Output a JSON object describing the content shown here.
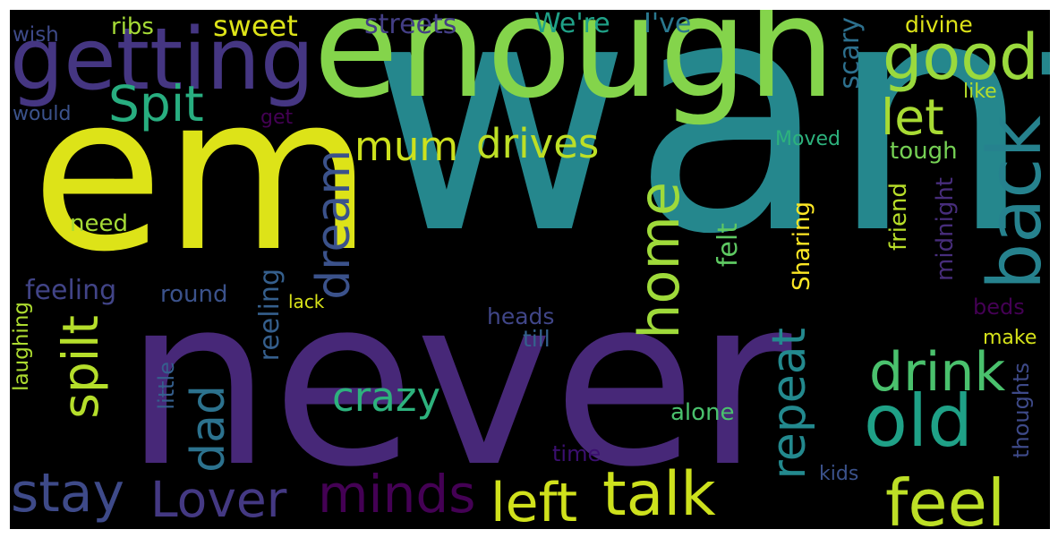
{
  "background_color": "#000000",
  "words": [
    {
      "text": "want",
      "color": "#25878d"
    },
    {
      "text": "never",
      "color": "#472878"
    },
    {
      "text": "em",
      "color": "#dde318"
    },
    {
      "text": "enough",
      "color": "#84d44b"
    },
    {
      "text": "getting",
      "color": "#453682"
    },
    {
      "text": "good",
      "color": "#9ad93d"
    },
    {
      "text": "back",
      "color": "#26828e"
    },
    {
      "text": "Spit",
      "color": "#28ae80"
    },
    {
      "text": "let",
      "color": "#a8db34"
    },
    {
      "text": "mum",
      "color": "#cde11d"
    },
    {
      "text": "drives",
      "color": "#bddf26"
    },
    {
      "text": "home",
      "color": "#9fda3a"
    },
    {
      "text": "dream",
      "color": "#3b528b"
    },
    {
      "text": "old",
      "color": "#1fa187"
    },
    {
      "text": "drink",
      "color": "#4ac16d"
    },
    {
      "text": "repeat",
      "color": "#23898e"
    },
    {
      "text": "talk",
      "color": "#cde11d"
    },
    {
      "text": "feel",
      "color": "#bddf26"
    },
    {
      "text": "left",
      "color": "#d0e11c"
    },
    {
      "text": "minds",
      "color": "#440154"
    },
    {
      "text": "Lover",
      "color": "#443983"
    },
    {
      "text": "stay",
      "color": "#3e4a89"
    },
    {
      "text": "spilt",
      "color": "#b5de2b"
    },
    {
      "text": "dad",
      "color": "#2c728e"
    },
    {
      "text": "crazy",
      "color": "#2db27d"
    },
    {
      "text": "feeling",
      "color": "#414487"
    },
    {
      "text": "sweet",
      "color": "#dde318"
    },
    {
      "text": "streets",
      "color": "#433e85"
    },
    {
      "text": "We're",
      "color": "#1fa187"
    },
    {
      "text": "I've",
      "color": "#2a788e"
    },
    {
      "text": "divine",
      "color": "#dde318"
    },
    {
      "text": "ribs",
      "color": "#a5db36"
    },
    {
      "text": "wish",
      "color": "#3e4a89"
    },
    {
      "text": "would",
      "color": "#3b528b"
    },
    {
      "text": "get",
      "color": "#440154"
    },
    {
      "text": "scary",
      "color": "#2d708e"
    },
    {
      "text": "like",
      "color": "#b5de2b"
    },
    {
      "text": "Moved",
      "color": "#2db27d"
    },
    {
      "text": "tough",
      "color": "#75d054"
    },
    {
      "text": "felt",
      "color": "#5ec962"
    },
    {
      "text": "Sharing",
      "color": "#fde725"
    },
    {
      "text": "friend",
      "color": "#b8de29"
    },
    {
      "text": "midnight",
      "color": "#472d7b"
    },
    {
      "text": "need",
      "color": "#a5db36"
    },
    {
      "text": "round",
      "color": "#3b528b"
    },
    {
      "text": "reeling",
      "color": "#355f8d"
    },
    {
      "text": "lack",
      "color": "#d8e219"
    },
    {
      "text": "laughing",
      "color": "#addc30"
    },
    {
      "text": "heads",
      "color": "#404688"
    },
    {
      "text": "till",
      "color": "#34618d"
    },
    {
      "text": "beds",
      "color": "#440154"
    },
    {
      "text": "make",
      "color": "#d5e21a"
    },
    {
      "text": "little",
      "color": "#355f8d"
    },
    {
      "text": "alone",
      "color": "#4ac16d"
    },
    {
      "text": "time",
      "color": "#3b0f70"
    },
    {
      "text": "kids",
      "color": "#3b528b"
    },
    {
      "text": "thoughts",
      "color": "#3e4a89"
    }
  ]
}
